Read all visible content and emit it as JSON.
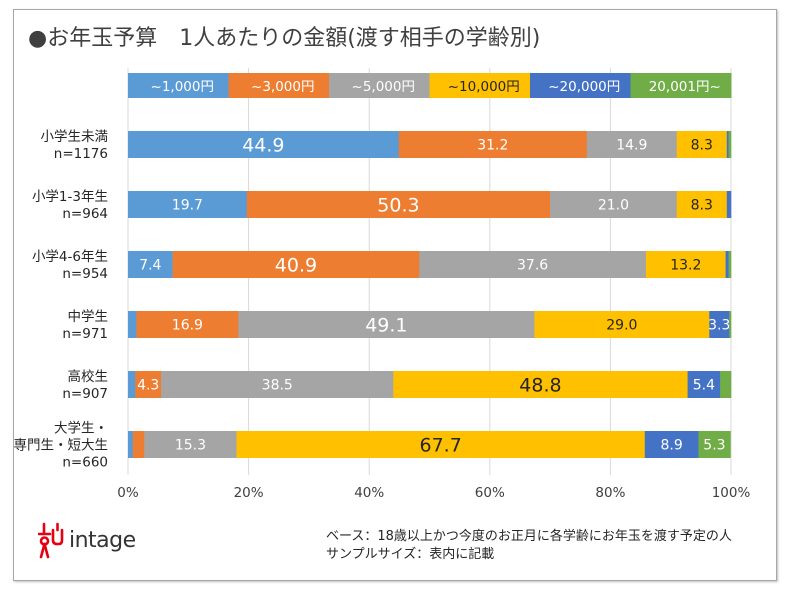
{
  "title": "●お年玉予算　1人あたりの金額(渡す相手の学齢別)",
  "logo": {
    "name": "intage"
  },
  "notes": [
    "ベース：18歳以上かつ今度のお正月に各学齢にお年玉を渡す予定の人",
    "サンプルサイズ：表内に記載"
  ],
  "chart_data": {
    "type": "bar",
    "orientation": "horizontal",
    "stacked": "percent",
    "title": "●お年玉予算　1人あたりの金額(渡す相手の学齢別)",
    "xlabel": "",
    "ylabel": "",
    "xlim": [
      0,
      100
    ],
    "grid": true,
    "legend_position": "top",
    "x_ticks": [
      "0%",
      "20%",
      "40%",
      "60%",
      "80%",
      "100%"
    ],
    "categories": [
      {
        "label": "小学生未満",
        "n": "n=1176"
      },
      {
        "label": "小学1-3年生",
        "n": "n=964"
      },
      {
        "label": "小学4-6年生",
        "n": "n=954"
      },
      {
        "label": "中学生",
        "n": "n=971"
      },
      {
        "label": "高校生",
        "n": "n=907"
      },
      {
        "label": [
          "大学生・",
          "専門生・短大生"
        ],
        "n": "n=660"
      }
    ],
    "series": [
      {
        "name": "~1,000円",
        "color": "#5b9bd5",
        "label_color": "#ffffff",
        "values": [
          44.9,
          19.7,
          7.4,
          1.4,
          1.2,
          0.8
        ],
        "labels": [
          "44.9",
          "19.7",
          "7.4",
          "",
          "",
          ""
        ]
      },
      {
        "name": "~3,000円",
        "color": "#ed7d31",
        "label_color": "#ffffff",
        "values": [
          31.2,
          50.3,
          40.9,
          16.9,
          4.3,
          1.9
        ],
        "labels": [
          "31.2",
          "50.3",
          "40.9",
          "16.9",
          "4.3",
          ""
        ]
      },
      {
        "name": "~5,000円",
        "color": "#a5a5a5",
        "label_color": "#ffffff",
        "values": [
          14.9,
          21.0,
          37.6,
          49.1,
          38.5,
          15.3
        ],
        "labels": [
          "14.9",
          "21.0",
          "37.6",
          "49.1",
          "38.5",
          "15.3"
        ]
      },
      {
        "name": "~10,000円",
        "color": "#ffc000",
        "label_color": "#262626",
        "values": [
          8.3,
          8.3,
          13.2,
          29.0,
          48.8,
          67.7
        ],
        "labels": [
          "8.3",
          "8.3",
          "13.2",
          "29.0",
          "48.8",
          "67.7"
        ]
      },
      {
        "name": "~20,000円",
        "color": "#4472c4",
        "label_color": "#ffffff",
        "values": [
          0.3,
          0.7,
          0.5,
          3.3,
          5.4,
          8.9
        ],
        "labels": [
          "",
          "",
          "",
          "3.3",
          "5.4",
          "8.9"
        ]
      },
      {
        "name": "20,001円~",
        "color": "#70ad47",
        "label_color": "#ffffff",
        "values": [
          0.4,
          0.0,
          0.4,
          0.3,
          1.8,
          5.3
        ],
        "labels": [
          "",
          "",
          "",
          "",
          "",
          "5.3"
        ]
      }
    ],
    "emphasized_labels": [
      [
        0,
        0
      ],
      [
        1,
        1
      ],
      [
        2,
        1
      ],
      [
        3,
        2
      ],
      [
        4,
        3
      ],
      [
        5,
        3
      ]
    ]
  }
}
